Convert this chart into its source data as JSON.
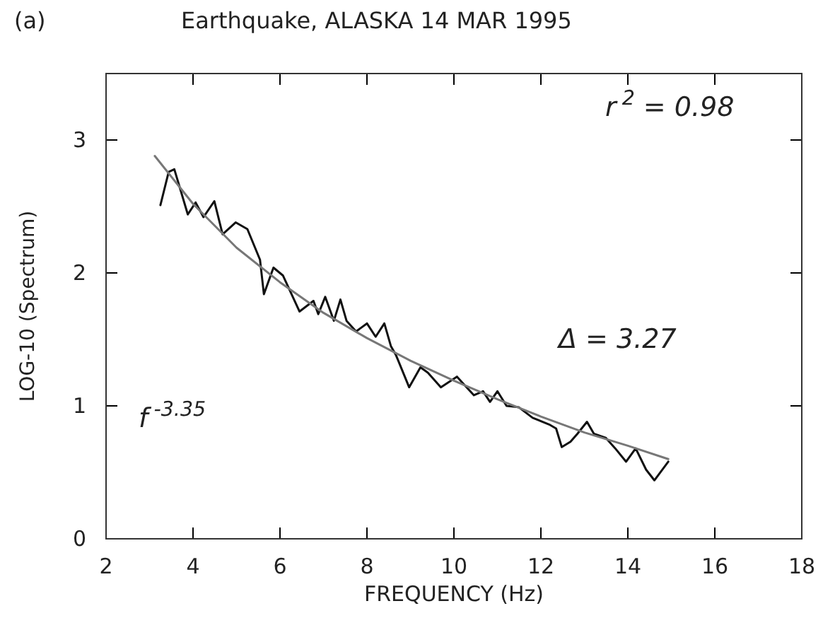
{
  "chart_data": {
    "type": "line",
    "title": "Earthquake,  ALASKA   14 MAR 1995",
    "xlabel": "FREQUENCY (Hz)",
    "ylabel": "LOG-10 (Spectrum)",
    "annotations": [
      "(a)",
      "r$^{2}$  =  0.98",
      "Δ = 3.27",
      "f$^{-3.35}$"
    ],
    "xlim": [
      2,
      18
    ],
    "xticks": [
      2,
      4,
      6,
      8,
      10,
      12,
      14,
      16,
      18
    ],
    "ylim": [
      0,
      3.5
    ],
    "yticks": [
      0,
      1,
      2,
      3
    ],
    "grid": false,
    "series": [
      {
        "color": "#111111",
        "line_style": "solid",
        "x": [
          3.25,
          3.44,
          3.57,
          3.88,
          4.06,
          4.24,
          4.49,
          4.68,
          4.98,
          5.25,
          5.54,
          5.63,
          5.85,
          6.07,
          6.45,
          6.77,
          6.88,
          7.04,
          7.24,
          7.39,
          7.53,
          7.75,
          8.0,
          8.2,
          8.4,
          8.55,
          8.67,
          8.97,
          9.23,
          9.4,
          9.7,
          10.07,
          10.18,
          10.46,
          10.67,
          10.83,
          11.0,
          11.21,
          11.49,
          11.81,
          12.19,
          12.35,
          12.48,
          12.68,
          12.84,
          13.06,
          13.22,
          13.49,
          13.71,
          13.96,
          14.18,
          14.42,
          14.61,
          14.93
        ],
        "values": [
          2.51,
          2.76,
          2.78,
          2.44,
          2.53,
          2.42,
          2.54,
          2.29,
          2.38,
          2.33,
          2.1,
          1.84,
          2.04,
          1.98,
          1.71,
          1.79,
          1.69,
          1.82,
          1.64,
          1.8,
          1.64,
          1.56,
          1.62,
          1.52,
          1.62,
          1.45,
          1.38,
          1.14,
          1.29,
          1.25,
          1.14,
          1.22,
          1.18,
          1.08,
          1.11,
          1.03,
          1.11,
          1.0,
          0.99,
          0.91,
          0.86,
          0.83,
          0.69,
          0.73,
          0.79,
          0.88,
          0.79,
          0.76,
          0.68,
          0.58,
          0.68,
          0.52,
          0.44,
          0.58
        ]
      },
      {
        "color": "#777777",
        "line_style": "solid",
        "x": [
          3.12,
          4,
          5,
          6,
          7,
          8,
          9,
          10,
          11,
          12,
          13,
          14,
          14.93
        ],
        "values": [
          2.88,
          2.52,
          2.19,
          1.93,
          1.7,
          1.51,
          1.34,
          1.19,
          1.05,
          0.92,
          0.8,
          0.7,
          0.6
        ]
      }
    ]
  }
}
